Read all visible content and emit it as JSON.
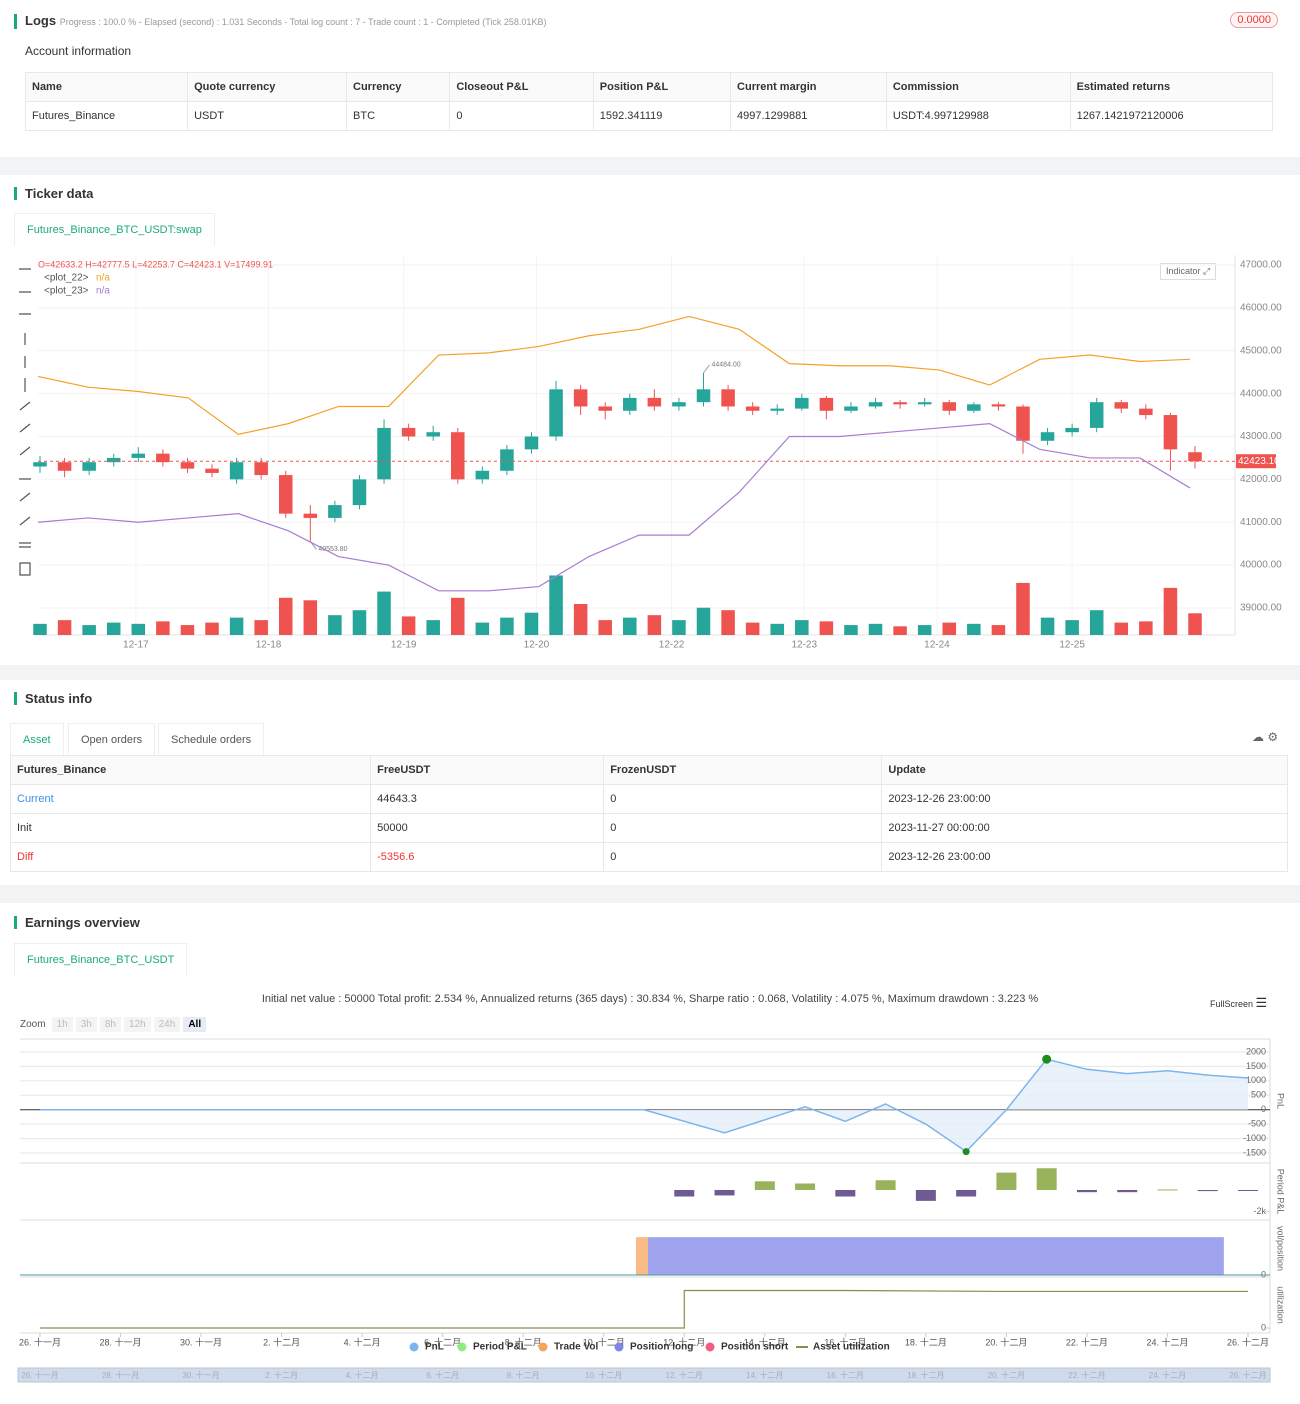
{
  "logs": {
    "title": "Logs",
    "progress": "Progress : 100.0 % - Elapsed (second) : 1.031 Seconds - Total log count : 7 - Trade count : 1 - Completed (Tick 258.01KB)",
    "badge": "0.0000"
  },
  "account": {
    "title": "Account information",
    "columns": [
      "Name",
      "Quote currency",
      "Currency",
      "Closeout P&L",
      "Position P&L",
      "Current margin",
      "Commission",
      "Estimated returns"
    ],
    "rows": [
      [
        "Futures_Binance",
        "USDT",
        "BTC",
        "0",
        "1592.341119",
        "4997.1299881",
        "USDT:4.997129988",
        "1267.1421972120006"
      ]
    ]
  },
  "ticker": {
    "title": "Ticker data",
    "tab": "Futures_Binance_BTC_USDT:swap",
    "indicator": "Indicator"
  },
  "status": {
    "title": "Status info",
    "tabs": [
      "Asset",
      "Open orders",
      "Schedule orders"
    ],
    "columns": [
      "Futures_Binance",
      "FreeUSDT",
      "FrozenUSDT",
      "Update"
    ],
    "rows": [
      [
        "Current",
        "44643.3",
        "0",
        "2023-12-26 23:00:00"
      ],
      [
        "Init",
        "50000",
        "0",
        "2023-11-27 00:00:00"
      ],
      [
        "Diff",
        "-5356.6",
        "0",
        "2023-12-26 23:00:00"
      ]
    ]
  },
  "earnings": {
    "title": "Earnings overview",
    "tab": "Futures_Binance_BTC_USDT"
  },
  "chart_data": [
    {
      "type": "candlestick",
      "ohlc_label": "O=42633.2 H=42777.5 L=42253.7 C=42423.1 V=17499.91",
      "up_color": "#26a69a",
      "down_color": "#ef5350",
      "xlim": [
        0,
        47
      ],
      "xticks": [
        {
          "value": 3.9,
          "label": "12-17"
        },
        {
          "value": 9.3,
          "label": "12-18"
        },
        {
          "value": 14.8,
          "label": "12-19"
        },
        {
          "value": 20.2,
          "label": "12-20"
        },
        {
          "value": 25.7,
          "label": "12-22"
        },
        {
          "value": 31.1,
          "label": "12-23"
        },
        {
          "value": 36.5,
          "label": "12-24"
        },
        {
          "value": 42.0,
          "label": "12-25"
        }
      ],
      "ylim": [
        38400,
        47200
      ],
      "yticks": [
        {
          "value": 47000,
          "label": "47000.00"
        },
        {
          "value": 46000,
          "label": "46000.00"
        },
        {
          "value": 45000,
          "label": "45000.00"
        },
        {
          "value": 44000,
          "label": "44000.00"
        },
        {
          "value": 43000,
          "label": "43000.00"
        },
        {
          "value": 42000,
          "label": "42000.00"
        },
        {
          "value": 41000,
          "label": "41000.00"
        },
        {
          "value": 40000,
          "label": "40000.00"
        },
        {
          "value": 39000,
          "label": "39000.00"
        }
      ],
      "last_price": {
        "value": 42423.1,
        "label": "42423.10"
      },
      "annotations": [
        {
          "value": 44484,
          "label": "44484.00"
        },
        {
          "value": 40553.8,
          "label": "40553.80"
        }
      ],
      "candles": [
        [
          42300,
          42550,
          42150,
          42400
        ],
        [
          42400,
          42500,
          42050,
          42200
        ],
        [
          42200,
          42500,
          42100,
          42400
        ],
        [
          42400,
          42600,
          42300,
          42500
        ],
        [
          42500,
          42750,
          42400,
          42600
        ],
        [
          42600,
          42700,
          42300,
          42400
        ],
        [
          42400,
          42500,
          42150,
          42250
        ],
        [
          42250,
          42350,
          42050,
          42150
        ],
        [
          42000,
          42500,
          41900,
          42400
        ],
        [
          42400,
          42500,
          42000,
          42100
        ],
        [
          42100,
          42200,
          41100,
          41200
        ],
        [
          41200,
          41400,
          40553.8,
          41100
        ],
        [
          41100,
          41500,
          41000,
          41400
        ],
        [
          41400,
          42100,
          41300,
          42000
        ],
        [
          42000,
          43400,
          41900,
          43200
        ],
        [
          43200,
          43300,
          42900,
          43000
        ],
        [
          43000,
          43250,
          42900,
          43100
        ],
        [
          43100,
          43200,
          41900,
          42000
        ],
        [
          42000,
          42300,
          41900,
          42200
        ],
        [
          42200,
          42800,
          42100,
          42700
        ],
        [
          42700,
          43100,
          42600,
          43000
        ],
        [
          43000,
          44300,
          42900,
          44100
        ],
        [
          44100,
          44200,
          43500,
          43700
        ],
        [
          43700,
          43800,
          43400,
          43600
        ],
        [
          43600,
          44000,
          43500,
          43900
        ],
        [
          43900,
          44100,
          43600,
          43700
        ],
        [
          43700,
          43900,
          43600,
          43800
        ],
        [
          43800,
          44484,
          43700,
          44100
        ],
        [
          44100,
          44200,
          43600,
          43700
        ],
        [
          43700,
          43800,
          43500,
          43600
        ],
        [
          43600,
          43750,
          43500,
          43650
        ],
        [
          43650,
          44000,
          43600,
          43900
        ],
        [
          43900,
          43950,
          43400,
          43600
        ],
        [
          43600,
          43800,
          43550,
          43700
        ],
        [
          43700,
          43900,
          43650,
          43800
        ],
        [
          43800,
          43850,
          43650,
          43750
        ],
        [
          43750,
          43900,
          43700,
          43800
        ],
        [
          43800,
          43850,
          43500,
          43600
        ],
        [
          43600,
          43800,
          43550,
          43750
        ],
        [
          43750,
          43800,
          43600,
          43700
        ],
        [
          43700,
          43750,
          42600,
          42900
        ],
        [
          42900,
          43200,
          42800,
          43100
        ],
        [
          43100,
          43300,
          43000,
          43200
        ],
        [
          43200,
          43900,
          43100,
          43800
        ],
        [
          43800,
          43850,
          43550,
          43650
        ],
        [
          43650,
          43750,
          43400,
          43500
        ],
        [
          43500,
          43550,
          42200,
          42700
        ],
        [
          42633.2,
          42777.5,
          42253.7,
          42423.1
        ]
      ],
      "volumes": [
        9000,
        12000,
        8000,
        10000,
        9000,
        11000,
        8000,
        10000,
        14000,
        12000,
        30000,
        28000,
        16000,
        20000,
        35000,
        15000,
        12000,
        30000,
        10000,
        14000,
        18000,
        48000,
        25000,
        12000,
        14000,
        16000,
        12000,
        22000,
        20000,
        10000,
        9000,
        12000,
        11000,
        8000,
        9000,
        7000,
        8000,
        10000,
        9000,
        8000,
        42000,
        14000,
        12000,
        20000,
        10000,
        11000,
        38000,
        17499.91
      ],
      "series": [
        {
          "name": "<plot_22>",
          "legend_value": "n/a",
          "color": "#f5a02a",
          "values": [
            44400,
            44150,
            44050,
            43900,
            43050,
            43300,
            43700,
            43700,
            44900,
            44950,
            45100,
            45350,
            45500,
            45800,
            45500,
            44700,
            44650,
            44650,
            44550,
            44200,
            44800,
            44900,
            44750,
            44800
          ]
        },
        {
          "name": "<plot_23>",
          "legend_value": "n/a",
          "color": "#a97bd1",
          "values": [
            41000,
            41100,
            41000,
            41100,
            41200,
            40800,
            40200,
            40000,
            39400,
            39400,
            39500,
            40200,
            40700,
            40700,
            41700,
            43000,
            43000,
            43100,
            43200,
            43300,
            42700,
            42500,
            42500,
            41800
          ]
        }
      ]
    },
    {
      "type": "line",
      "summary": "Initial net value : 50000 Total profit: 2.534 %, Annualized returns (365 days) : 30.834 %, Sharpe ratio : 0.068, Volatility : 4.075 %, Maximum drawdown : 3.223 %",
      "zoom": {
        "label": "Zoom",
        "buttons": [
          "1h",
          "3h",
          "8h",
          "12h",
          "24h",
          "All"
        ]
      },
      "fullscreen": "FullScreen",
      "xlim": [
        0,
        30
      ],
      "xticks": [
        {
          "value": 0,
          "label": "26. 十一月"
        },
        {
          "value": 2,
          "label": "28. 十一月"
        },
        {
          "value": 4,
          "label": "30. 十一月"
        },
        {
          "value": 6,
          "label": "2. 十二月"
        },
        {
          "value": 8,
          "label": "4. 十二月"
        },
        {
          "value": 10,
          "label": "6. 十二月"
        },
        {
          "value": 12,
          "label": "8. 十二月"
        },
        {
          "value": 14,
          "label": "10. 十二月"
        },
        {
          "value": 16,
          "label": "12. 十二月"
        },
        {
          "value": 18,
          "label": "14. 十二月"
        },
        {
          "value": 20,
          "label": "16. 十二月"
        },
        {
          "value": 22,
          "label": "18. 十二月"
        },
        {
          "value": 24,
          "label": "20. 十二月"
        },
        {
          "value": 26,
          "label": "22. 十二月"
        },
        {
          "value": 28,
          "label": "24. 十二月"
        },
        {
          "value": 30,
          "label": "26. 十二月"
        }
      ],
      "panels": [
        {
          "axis_label": "PnL",
          "ylim": [
            -1800,
            2200
          ],
          "yticks": [
            2000,
            1500,
            1000,
            500,
            0,
            -500,
            -1000,
            -1500
          ],
          "series": [
            {
              "name": "PnL",
              "color": "#7cb5ec",
              "x": [
                0,
                15,
                17,
                19,
                20,
                21,
                22,
                23,
                24,
                25,
                26,
                27,
                28,
                29,
                30
              ],
              "values": [
                0,
                0,
                -800,
                100,
                -400,
                200,
                -500,
                -1450,
                0,
                1750,
                1400,
                1250,
                1350,
                1200,
                1100
              ]
            }
          ]
        },
        {
          "axis_label": "Period P&L",
          "ylim": [
            -2300,
            2300
          ],
          "yticks": [
            {
              "value": -2000,
              "label": "-2k"
            }
          ],
          "series": [
            {
              "name": "Period P&L",
              "color": "#90ed7d",
              "bar_colors": [
                "#6f5a92",
                "#99b35c"
              ],
              "x": [
                16,
                17,
                18,
                19,
                20,
                21,
                22,
                23,
                24,
                25,
                26,
                27,
                28,
                29,
                30
              ],
              "values": [
                -600,
                -500,
                800,
                600,
                -600,
                900,
                -1000,
                -600,
                1600,
                2000,
                -200,
                -200,
                50,
                -100,
                -50
              ]
            }
          ]
        },
        {
          "axis_label": "vol/position",
          "ylim": [
            0,
            1.4
          ],
          "yticks": [
            0
          ],
          "series": [
            {
              "name": "Trade Vol",
              "color": "#f7a35c",
              "x": [
                [
                  14.8,
                  15.1
                ]
              ],
              "values": [
                1
              ]
            },
            {
              "name": "Position long",
              "color": "#8085e9",
              "x": [
                [
                  15.1,
                  29.4
                ]
              ],
              "values": [
                1
              ]
            },
            {
              "name": "Position short",
              "color": "#f15c80",
              "x": [],
              "values": []
            }
          ]
        },
        {
          "axis_label": "utilization",
          "ylim": [
            0,
            1.05
          ],
          "yticks": [
            0
          ],
          "series": [
            {
              "name": "Asset utilization",
              "color": "#8d8d4a",
              "x": [
                0,
                16,
                16,
                20,
                24,
                30
              ],
              "values": [
                0,
                0,
                0.82,
                0.82,
                0.8,
                0.8
              ]
            }
          ]
        }
      ]
    }
  ]
}
